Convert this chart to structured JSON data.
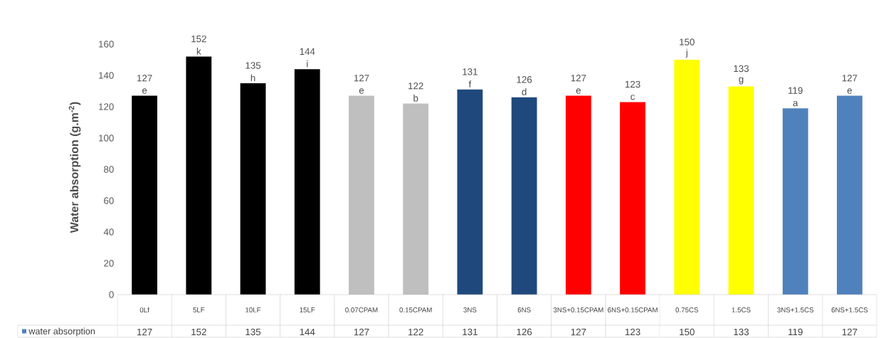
{
  "chart_data": {
    "type": "bar",
    "ylabel": "Water absorption (g.m$^{-2}$)",
    "categories": [
      "0Lf",
      "5LF",
      "10LF",
      "15LF",
      "0.07CPAM",
      "0.15CPAM",
      "3NS",
      "6NS",
      "3NS+0.15CPAM",
      "6NS+0.15CPAM",
      "0.75CS",
      "1.5CS",
      "3NS+1.5CS",
      "6NS+1.5CS"
    ],
    "series": [
      {
        "name": "water absorption",
        "color": "#4f81bd",
        "values": [
          127,
          152,
          135,
          144,
          127,
          122,
          131,
          126,
          127,
          123,
          150,
          133,
          119,
          127
        ],
        "value_labels": [
          "127",
          "152",
          "135",
          "144",
          "127",
          "122",
          "131",
          "126",
          "127",
          "123",
          "150",
          "133",
          "119",
          "127"
        ],
        "colors": [
          "#000000",
          "#000000",
          "#000000",
          "#000000",
          "#bfbfbf",
          "#bfbfbf",
          "#1f497d",
          "#1f497d",
          "#ff0000",
          "#ff0000",
          "#ffff00",
          "#ffff00",
          "#4f81bd",
          "#4f81bd"
        ]
      }
    ],
    "ylim": [
      0,
      160
    ],
    "yticks": [
      0,
      20,
      40,
      60,
      80,
      100,
      120,
      140,
      160
    ],
    "data_labels": true,
    "legend": "bottom",
    "grid": false,
    "annotations": [
      {
        "text": "e",
        "x": "0Lf",
        "y": 127
      },
      {
        "text": "k",
        "x": "5LF",
        "y": 152
      },
      {
        "text": "h",
        "x": "10LF",
        "y": 135
      },
      {
        "text": "i",
        "x": "15LF",
        "y": 144
      },
      {
        "text": "e",
        "x": "0.07CPAM",
        "y": 127
      },
      {
        "text": "b",
        "x": "0.15CPAM",
        "y": 122
      },
      {
        "text": "f",
        "x": "3NS",
        "y": 131
      },
      {
        "text": "d",
        "x": "6NS",
        "y": 126
      },
      {
        "text": "e",
        "x": "3NS+0.15CPAM",
        "y": 127
      },
      {
        "text": "c",
        "x": "6NS+0.15CPAM",
        "y": 123
      },
      {
        "text": "j",
        "x": "0.75CS",
        "y": 150
      },
      {
        "text": "g",
        "x": "1.5CS",
        "y": 133
      },
      {
        "text": "a",
        "x": "3NS+1.5CS",
        "y": 119
      },
      {
        "text": "e",
        "x": "6NS+1.5CS",
        "y": 127
      }
    ]
  }
}
